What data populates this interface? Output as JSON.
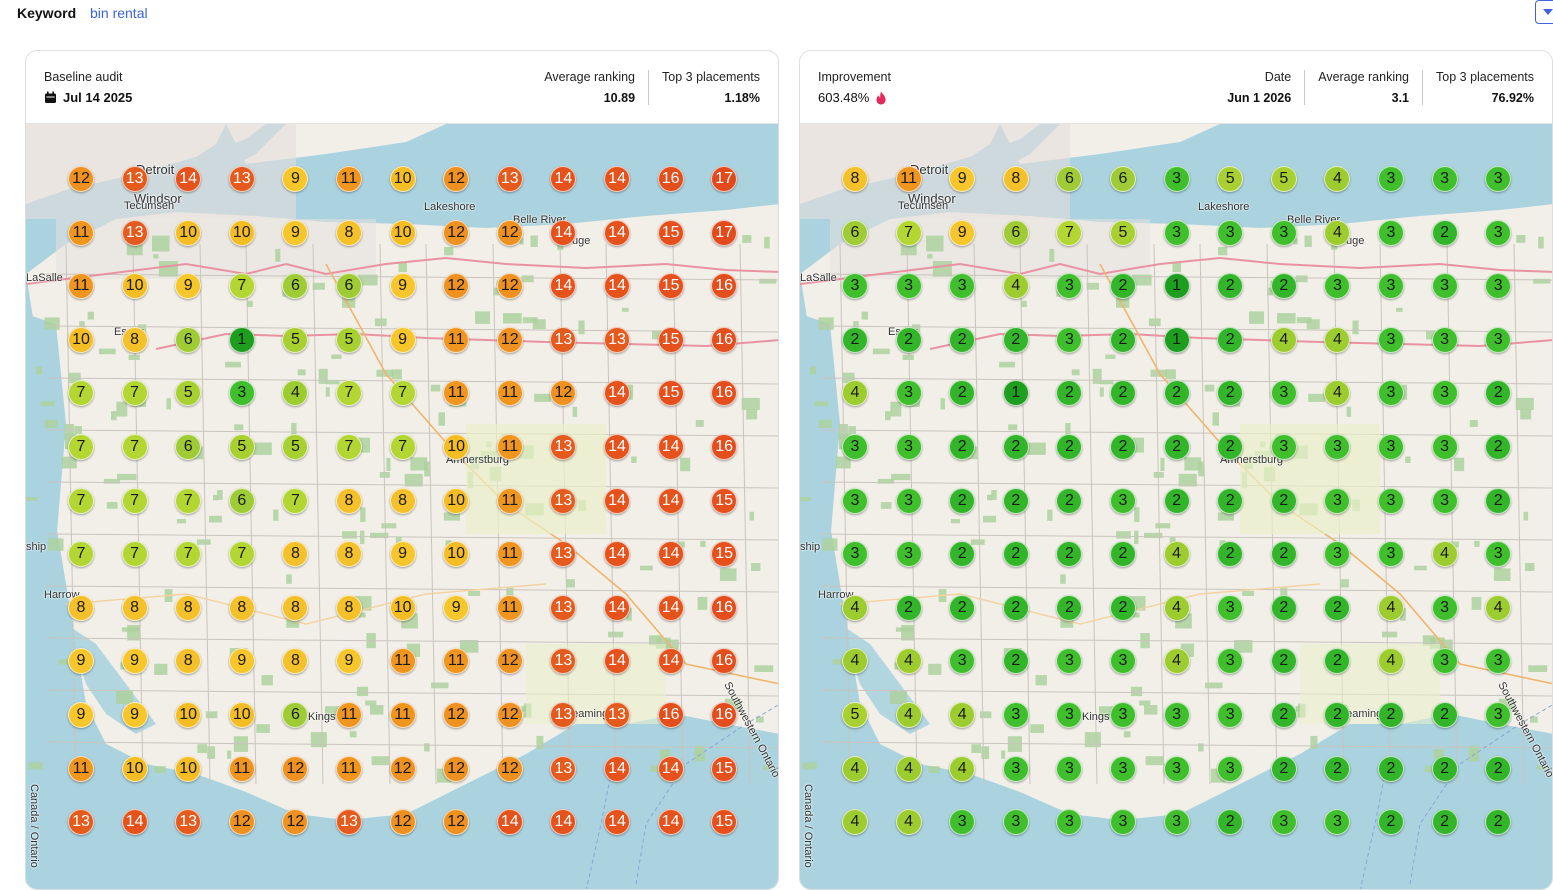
{
  "keyword": {
    "label": "Keyword",
    "value": "bin rental"
  },
  "colors": {
    "rank_1": "#1e9e1e",
    "rank_2": "#33b52a",
    "rank_3": "#3fbf2c",
    "rank_4": "#9ccc2e",
    "rank_5": "#a8d030",
    "rank_6": "#9fcc35",
    "rank_7": "#b3d633",
    "rank_8": "#f5c12a",
    "rank_9": "#f6c62b",
    "rank_10": "#f4bd24",
    "rank_11": "#f0951e",
    "rank_12": "#ef9120",
    "rank_13": "#e55a1d",
    "rank_14": "#e5521c",
    "rank_15": "#e5501c",
    "rank_16": "#e34e1c",
    "rank_17": "#e34a1b",
    "water": "#aad3df",
    "land": "#f2efe9"
  },
  "map_labels": [
    "Detroit",
    "Windsor",
    "Tecumseh",
    "Lakeshore",
    "Belle River",
    "Rouge",
    "LaSalle",
    "Essex",
    "Amherstburg",
    "Harrow",
    "Kingsville",
    "Leamington",
    "Southwestern Ontario",
    "Canada / Ontario",
    "ship"
  ],
  "left": {
    "title": "Baseline audit",
    "subtitle": "Jul 14 2025",
    "stats": [
      {
        "label": "Average ranking",
        "value": "10.89"
      },
      {
        "label": "Top 3 placements",
        "value": "1.18%"
      }
    ],
    "grid": [
      [
        12,
        13,
        14,
        13,
        9,
        11,
        10,
        12,
        13,
        14,
        14,
        16,
        17
      ],
      [
        11,
        13,
        10,
        10,
        9,
        8,
        10,
        12,
        12,
        14,
        14,
        15,
        17
      ],
      [
        11,
        10,
        9,
        7,
        6,
        6,
        9,
        12,
        12,
        14,
        14,
        15,
        16
      ],
      [
        10,
        8,
        6,
        1,
        5,
        5,
        9,
        11,
        12,
        13,
        13,
        15,
        16
      ],
      [
        7,
        7,
        5,
        3,
        4,
        7,
        7,
        11,
        11,
        12,
        14,
        15,
        16
      ],
      [
        7,
        7,
        6,
        5,
        5,
        7,
        7,
        10,
        11,
        13,
        14,
        14,
        16
      ],
      [
        7,
        7,
        7,
        6,
        7,
        8,
        8,
        10,
        11,
        13,
        14,
        14,
        15
      ],
      [
        7,
        7,
        7,
        7,
        8,
        8,
        9,
        10,
        11,
        13,
        14,
        14,
        15
      ],
      [
        8,
        8,
        8,
        8,
        8,
        8,
        10,
        9,
        11,
        13,
        14,
        14,
        16
      ],
      [
        9,
        9,
        8,
        9,
        8,
        9,
        11,
        11,
        12,
        13,
        14,
        14,
        16
      ],
      [
        9,
        9,
        10,
        10,
        6,
        11,
        11,
        12,
        12,
        13,
        13,
        16,
        16
      ],
      [
        11,
        10,
        10,
        11,
        12,
        11,
        12,
        12,
        12,
        13,
        14,
        14,
        15
      ],
      [
        13,
        14,
        13,
        12,
        12,
        13,
        12,
        12,
        14,
        14,
        14,
        14,
        15
      ]
    ]
  },
  "right": {
    "title": "Improvement",
    "subtitle": "603.48%",
    "stats": [
      {
        "label": "Date",
        "value": "Jun 1 2026"
      },
      {
        "label": "Average ranking",
        "value": "3.1"
      },
      {
        "label": "Top 3 placements",
        "value": "76.92%"
      }
    ],
    "grid": [
      [
        8,
        11,
        9,
        8,
        6,
        6,
        3,
        5,
        5,
        4,
        3,
        3,
        3
      ],
      [
        6,
        7,
        9,
        6,
        7,
        5,
        3,
        3,
        3,
        4,
        3,
        2,
        3
      ],
      [
        3,
        3,
        3,
        4,
        3,
        2,
        1,
        2,
        2,
        3,
        3,
        3,
        3
      ],
      [
        2,
        2,
        2,
        2,
        3,
        2,
        1,
        2,
        4,
        4,
        3,
        3,
        3
      ],
      [
        4,
        3,
        2,
        1,
        2,
        2,
        2,
        2,
        3,
        4,
        3,
        3,
        2
      ],
      [
        3,
        3,
        2,
        2,
        2,
        2,
        2,
        2,
        3,
        3,
        3,
        3,
        2
      ],
      [
        3,
        3,
        2,
        2,
        2,
        3,
        2,
        2,
        2,
        3,
        3,
        3,
        2
      ],
      [
        3,
        3,
        2,
        2,
        2,
        2,
        4,
        2,
        2,
        3,
        3,
        4,
        3
      ],
      [
        4,
        2,
        2,
        2,
        2,
        2,
        4,
        3,
        2,
        2,
        4,
        3,
        4
      ],
      [
        4,
        4,
        3,
        2,
        3,
        3,
        4,
        3,
        2,
        2,
        4,
        3,
        3
      ],
      [
        5,
        4,
        4,
        3,
        3,
        3,
        3,
        3,
        2,
        2,
        2,
        2,
        3
      ],
      [
        4,
        4,
        4,
        3,
        3,
        3,
        3,
        3,
        2,
        2,
        2,
        2,
        2
      ],
      [
        4,
        4,
        3,
        3,
        3,
        3,
        3,
        2,
        3,
        3,
        2,
        2,
        2
      ]
    ]
  }
}
